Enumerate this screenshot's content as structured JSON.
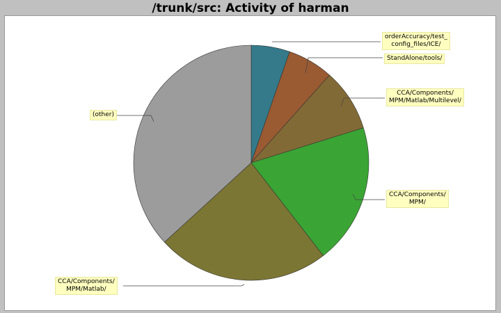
{
  "chart_data": {
    "type": "pie",
    "title": "/trunk/src: Activity of harman",
    "slices": [
      {
        "label": "orderAccuracy/test_\nconfig_files/ICE/",
        "value": 5.3,
        "color": "#347a8a"
      },
      {
        "label": "StandAlone/tools/",
        "value": 6.3,
        "color": "#9a5a32"
      },
      {
        "label": "CCA/Components/\nMPM/Matlab/Multilevel/",
        "value": 8.6,
        "color": "#826a36"
      },
      {
        "label": "CCA/Components/\nMPM/",
        "value": 19.3,
        "color": "#3aa434"
      },
      {
        "label": "CCA/Components/\nMPM/Matlab/",
        "value": 23.7,
        "color": "#7c7634"
      },
      {
        "label": "(other)",
        "value": 36.8,
        "color": "#9c9c9c"
      }
    ]
  }
}
